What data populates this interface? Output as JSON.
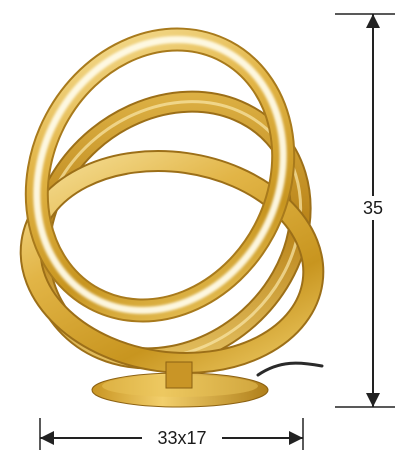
{
  "product": {
    "image_name": "gold-ring-table-lamp",
    "finish_colors": {
      "gold_light": "#f6dd8c",
      "gold_mid": "#d9aa3a",
      "gold_dark": "#9c6f18",
      "led_glow": "#fffbe8",
      "cable": "#2a2a2a"
    }
  },
  "dimensions": {
    "height_label": "35",
    "width_depth_label": "33x17",
    "line_color": "#222222"
  }
}
